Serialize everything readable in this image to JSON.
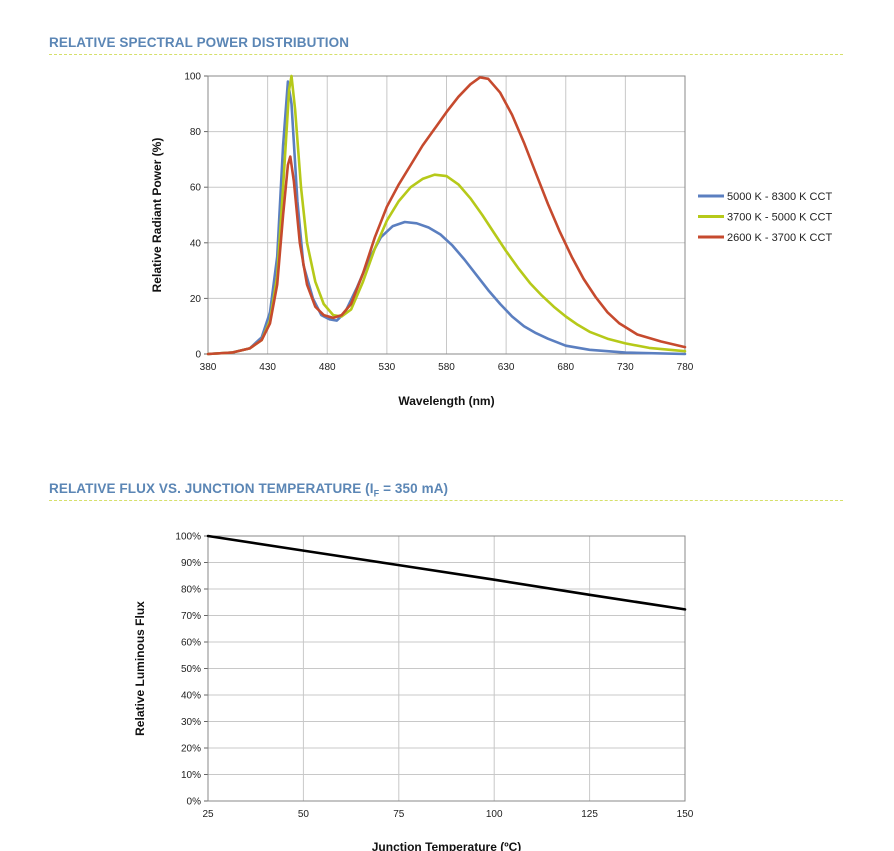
{
  "section1": {
    "title": "RELATIVE SPECTRAL POWER DISTRIBUTION"
  },
  "section2": {
    "title_main": "RELATIVE FLUX VS. JUNCTION TEMPERATURE (I",
    "title_sub": "F",
    "title_end": " = 350 mA)"
  },
  "colors": {
    "blue": "#5b7fc0",
    "green": "#b6c919",
    "red": "#c64a2e",
    "black": "#000000",
    "title": "#5b86b5",
    "rule": "#d6e06a"
  },
  "chart_data": [
    {
      "type": "line",
      "xlabel": "Wavelength (nm)",
      "ylabel": "Relative Radiant Power (%)",
      "xlim": [
        380,
        780
      ],
      "ylim": [
        0,
        100
      ],
      "xticks": [
        "380",
        "430",
        "480",
        "530",
        "580",
        "630",
        "680",
        "730",
        "780"
      ],
      "yticks": [
        "0",
        "20",
        "40",
        "60",
        "80",
        "100"
      ],
      "grid": true,
      "legend": "right",
      "series": [
        {
          "name": "5000 K - 8300 K CCT",
          "color": "#5b7fc0",
          "points": [
            [
              380,
              0
            ],
            [
              400,
              0.5
            ],
            [
              415,
              2
            ],
            [
              425,
              6
            ],
            [
              432,
              15
            ],
            [
              438,
              35
            ],
            [
              443,
              75
            ],
            [
              447,
              98
            ],
            [
              450,
              90
            ],
            [
              455,
              55
            ],
            [
              460,
              32
            ],
            [
              468,
              20
            ],
            [
              475,
              14
            ],
            [
              482,
              12.5
            ],
            [
              488,
              12
            ],
            [
              495,
              15
            ],
            [
              505,
              24
            ],
            [
              515,
              34
            ],
            [
              525,
              42
            ],
            [
              535,
              46
            ],
            [
              545,
              47.5
            ],
            [
              555,
              47
            ],
            [
              565,
              45.5
            ],
            [
              575,
              43
            ],
            [
              585,
              39
            ],
            [
              595,
              34
            ],
            [
              605,
              28.5
            ],
            [
              615,
              23
            ],
            [
              625,
              18
            ],
            [
              635,
              13.5
            ],
            [
              645,
              10
            ],
            [
              655,
              7.5
            ],
            [
              665,
              5.5
            ],
            [
              680,
              3
            ],
            [
              700,
              1.5
            ],
            [
              730,
              0.5
            ],
            [
              780,
              0
            ]
          ]
        },
        {
          "name": "3700 K - 5000 K CCT",
          "color": "#b6c919",
          "points": [
            [
              380,
              0
            ],
            [
              400,
              0.5
            ],
            [
              415,
              2
            ],
            [
              425,
              5
            ],
            [
              432,
              12
            ],
            [
              438,
              28
            ],
            [
              443,
              60
            ],
            [
              448,
              95
            ],
            [
              450,
              100
            ],
            [
              453,
              88
            ],
            [
              458,
              60
            ],
            [
              463,
              40
            ],
            [
              470,
              26
            ],
            [
              477,
              18
            ],
            [
              485,
              14
            ],
            [
              492,
              13.5
            ],
            [
              500,
              16
            ],
            [
              510,
              26
            ],
            [
              520,
              38
            ],
            [
              530,
              48
            ],
            [
              540,
              55
            ],
            [
              550,
              60
            ],
            [
              560,
              63
            ],
            [
              570,
              64.5
            ],
            [
              580,
              64
            ],
            [
              590,
              61
            ],
            [
              600,
              56
            ],
            [
              610,
              50
            ],
            [
              620,
              43.5
            ],
            [
              630,
              37
            ],
            [
              640,
              31
            ],
            [
              650,
              25.5
            ],
            [
              660,
              21
            ],
            [
              670,
              17
            ],
            [
              680,
              13.5
            ],
            [
              690,
              10.5
            ],
            [
              700,
              8
            ],
            [
              715,
              5.5
            ],
            [
              730,
              3.8
            ],
            [
              750,
              2.2
            ],
            [
              780,
              1
            ]
          ]
        },
        {
          "name": "2600 K - 3700 K CCT",
          "color": "#c64a2e",
          "points": [
            [
              380,
              0
            ],
            [
              400,
              0.5
            ],
            [
              415,
              2
            ],
            [
              425,
              5
            ],
            [
              432,
              11
            ],
            [
              438,
              25
            ],
            [
              443,
              50
            ],
            [
              447,
              68
            ],
            [
              449,
              71
            ],
            [
              452,
              62
            ],
            [
              457,
              40
            ],
            [
              463,
              25
            ],
            [
              470,
              17
            ],
            [
              477,
              14
            ],
            [
              485,
              13
            ],
            [
              492,
              14
            ],
            [
              500,
              18
            ],
            [
              510,
              29
            ],
            [
              520,
              42
            ],
            [
              530,
              53
            ],
            [
              540,
              61
            ],
            [
              550,
              68
            ],
            [
              560,
              75
            ],
            [
              570,
              81
            ],
            [
              580,
              87
            ],
            [
              590,
              92.5
            ],
            [
              600,
              97
            ],
            [
              608,
              99.5
            ],
            [
              615,
              99
            ],
            [
              625,
              94
            ],
            [
              635,
              86
            ],
            [
              645,
              76
            ],
            [
              655,
              65
            ],
            [
              665,
              54
            ],
            [
              675,
              44
            ],
            [
              685,
              35
            ],
            [
              695,
              27
            ],
            [
              705,
              20.5
            ],
            [
              715,
              15
            ],
            [
              725,
              11
            ],
            [
              740,
              7
            ],
            [
              760,
              4.5
            ],
            [
              780,
              2.5
            ]
          ]
        }
      ]
    },
    {
      "type": "line",
      "xlabel": "Junction Temperature (ºC)",
      "ylabel": "Relative Luminous Flux",
      "xlim": [
        25,
        150
      ],
      "ylim": [
        0,
        100
      ],
      "xticks": [
        "25",
        "50",
        "75",
        "100",
        "125",
        "150"
      ],
      "yticks": [
        "0%",
        "10%",
        "20%",
        "30%",
        "40%",
        "50%",
        "60%",
        "70%",
        "80%",
        "90%",
        "100%"
      ],
      "grid": true,
      "series": [
        {
          "color": "#000000",
          "points": [
            [
              25,
              100
            ],
            [
              50,
              94.5
            ],
            [
              75,
              89
            ],
            [
              100,
              83.5
            ],
            [
              125,
              77.8
            ],
            [
              150,
              72.3
            ]
          ]
        }
      ]
    }
  ]
}
